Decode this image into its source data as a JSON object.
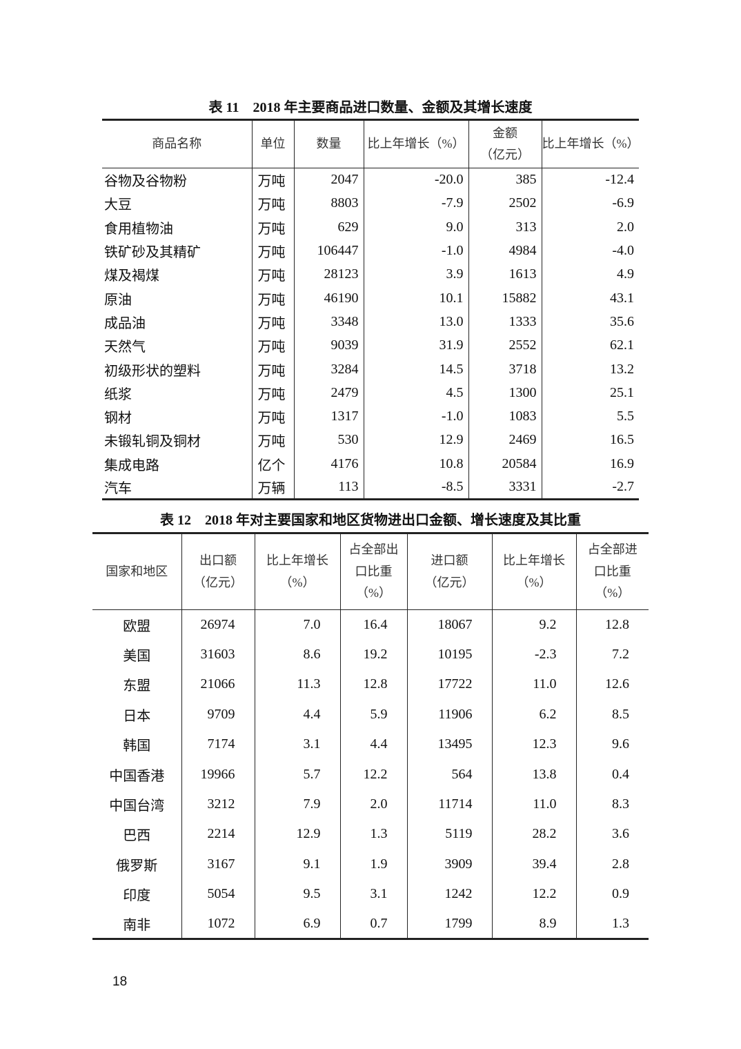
{
  "table11": {
    "title": "表 11　2018 年主要商品进口数量、金额及其增长速度",
    "header": [
      [
        "商品名称"
      ],
      [
        "单位"
      ],
      [
        "数量"
      ],
      [
        "比上年增长（%）"
      ],
      [
        "金额",
        "（亿元）"
      ],
      [
        "比上年增长（%）"
      ]
    ],
    "rows": [
      [
        "谷物及谷物粉",
        "万吨",
        "2047",
        "-20.0",
        "385",
        "-12.4"
      ],
      [
        "大豆",
        "万吨",
        "8803",
        "-7.9",
        "2502",
        "-6.9"
      ],
      [
        "食用植物油",
        "万吨",
        "629",
        "9.0",
        "313",
        "2.0"
      ],
      [
        "铁矿砂及其精矿",
        "万吨",
        "106447",
        "-1.0",
        "4984",
        "-4.0"
      ],
      [
        "煤及褐煤",
        "万吨",
        "28123",
        "3.9",
        "1613",
        "4.9"
      ],
      [
        "原油",
        "万吨",
        "46190",
        "10.1",
        "15882",
        "43.1"
      ],
      [
        "成品油",
        "万吨",
        "3348",
        "13.0",
        "1333",
        "35.6"
      ],
      [
        "天然气",
        "万吨",
        "9039",
        "31.9",
        "2552",
        "62.1"
      ],
      [
        "初级形状的塑料",
        "万吨",
        "3284",
        "14.5",
        "3718",
        "13.2"
      ],
      [
        "纸浆",
        "万吨",
        "2479",
        "4.5",
        "1300",
        "25.1"
      ],
      [
        "钢材",
        "万吨",
        "1317",
        "-1.0",
        "1083",
        "5.5"
      ],
      [
        "未锻轧铜及铜材",
        "万吨",
        "530",
        "12.9",
        "2469",
        "16.5"
      ],
      [
        "集成电路",
        "亿个",
        "4176",
        "10.8",
        "20584",
        "16.9"
      ],
      [
        "汽车",
        "万辆",
        "113",
        "-8.5",
        "3331",
        "-2.7"
      ]
    ]
  },
  "table12": {
    "title": "表 12　2018 年对主要国家和地区货物进出口金额、增长速度及其比重",
    "header": [
      [
        "国家和地区"
      ],
      [
        "出口额",
        "（亿元）"
      ],
      [
        "比上年增长",
        "（%）"
      ],
      [
        "占全部出",
        "口比重",
        "（%）"
      ],
      [
        "进口额",
        "（亿元）"
      ],
      [
        "比上年增长",
        "（%）"
      ],
      [
        "占全部进",
        "口比重",
        "（%）"
      ]
    ],
    "rows": [
      [
        "欧盟",
        "26974",
        "7.0",
        "16.4",
        "18067",
        "9.2",
        "12.8"
      ],
      [
        "美国",
        "31603",
        "8.6",
        "19.2",
        "10195",
        "-2.3",
        "7.2"
      ],
      [
        "东盟",
        "21066",
        "11.3",
        "12.8",
        "17722",
        "11.0",
        "12.6"
      ],
      [
        "日本",
        "9709",
        "4.4",
        "5.9",
        "11906",
        "6.2",
        "8.5"
      ],
      [
        "韩国",
        "7174",
        "3.1",
        "4.4",
        "13495",
        "12.3",
        "9.6"
      ],
      [
        "中国香港",
        "19966",
        "5.7",
        "12.2",
        "564",
        "13.8",
        "0.4"
      ],
      [
        "中国台湾",
        "3212",
        "7.9",
        "2.0",
        "11714",
        "11.0",
        "8.3"
      ],
      [
        "巴西",
        "2214",
        "12.9",
        "1.3",
        "5119",
        "28.2",
        "3.6"
      ],
      [
        "俄罗斯",
        "3167",
        "9.1",
        "1.9",
        "3909",
        "39.4",
        "2.8"
      ],
      [
        "印度",
        "5054",
        "9.5",
        "3.1",
        "1242",
        "12.2",
        "0.9"
      ],
      [
        "南非",
        "1072",
        "6.9",
        "0.7",
        "1799",
        "8.9",
        "1.3"
      ]
    ]
  },
  "page_number": "18"
}
